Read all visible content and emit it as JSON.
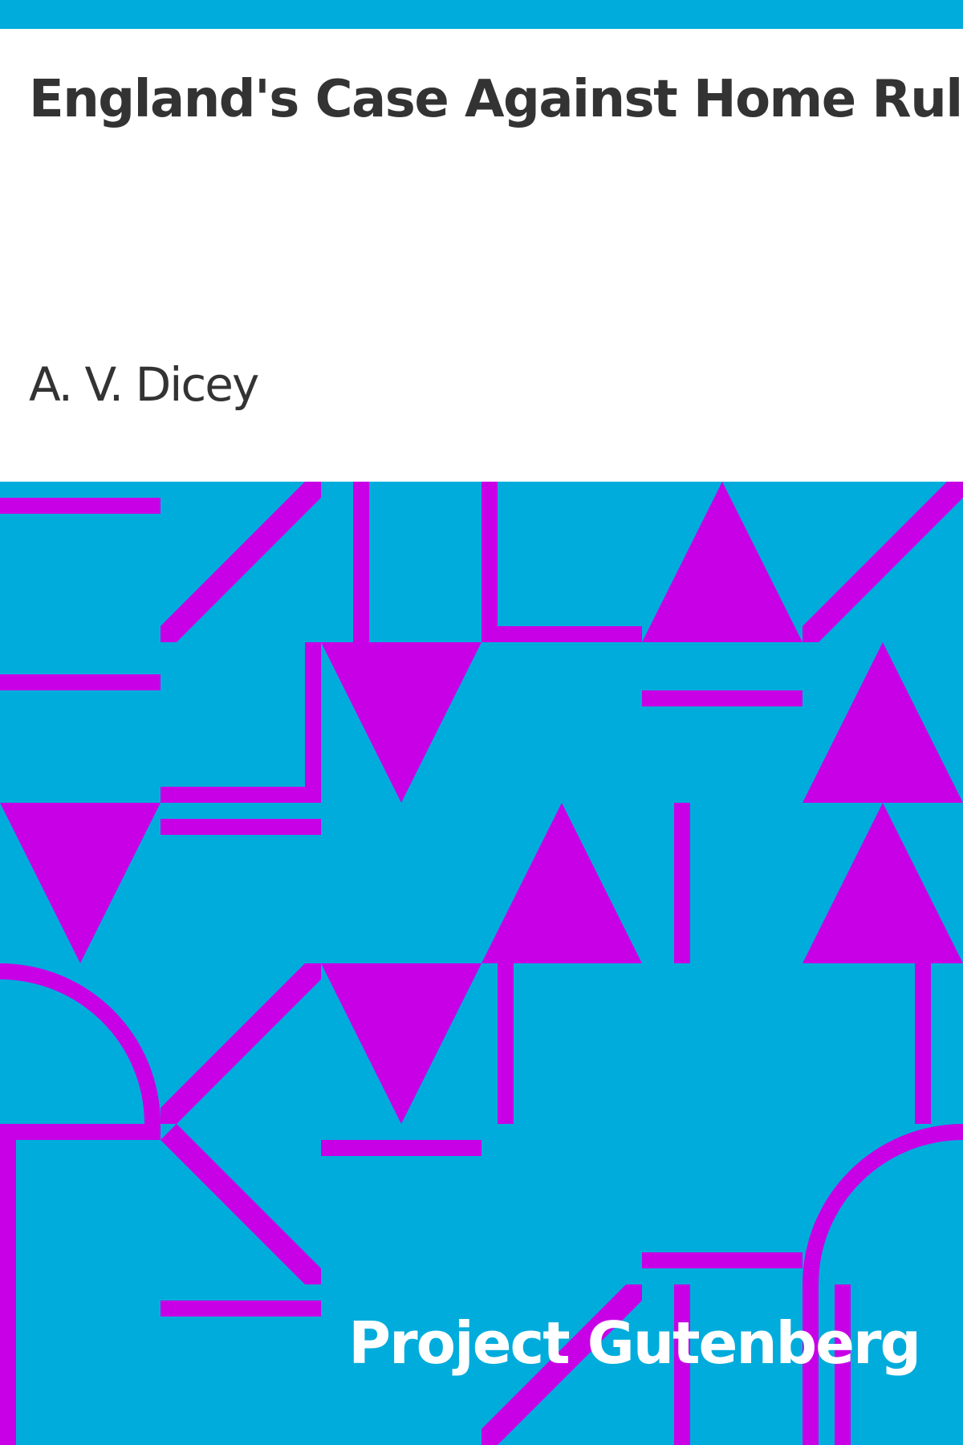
{
  "book": {
    "title": "England's Case Against Home Rule",
    "author": "A. V. Dicey"
  },
  "publisher": {
    "name": "Project Gutenberg"
  },
  "colors": {
    "accent_blue": "#00acdc",
    "pattern_magenta": "#c800e6",
    "text_dark": "#333333",
    "background": "#ffffff",
    "brand_text": "#ffffff"
  }
}
